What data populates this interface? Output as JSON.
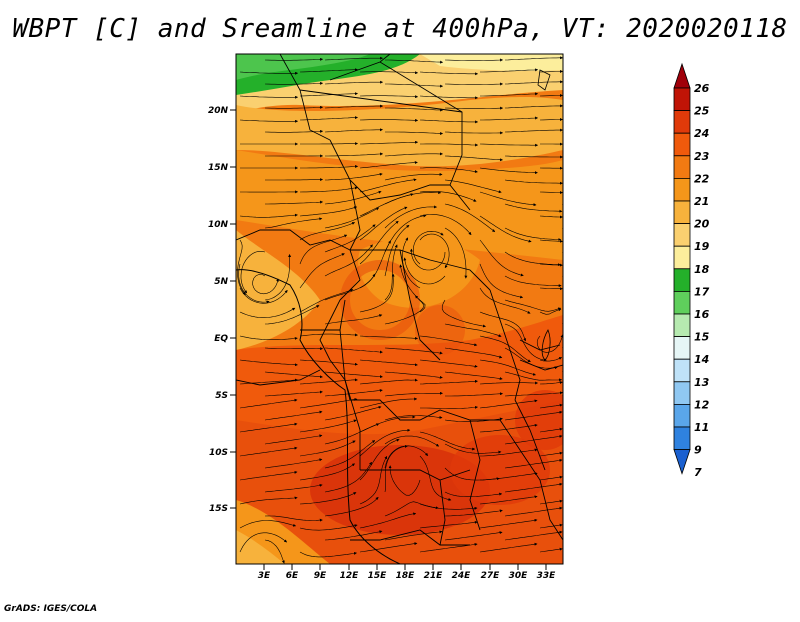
{
  "title": "WBPT [C] and Sreamline at 400hPa, VT: 2020020118",
  "credit": "GrADS: IGES/COLA",
  "lat_labels": [
    "20N",
    "15N",
    "10N",
    "5N",
    "EQ",
    "5S",
    "10S",
    "15S"
  ],
  "lon_labels": [
    "3E",
    "6E",
    "9E",
    "12E",
    "15E",
    "18E",
    "21E",
    "24E",
    "27E",
    "30E",
    "33E"
  ],
  "colorbar": {
    "labels": [
      "26",
      "25",
      "24",
      "23",
      "22",
      "21",
      "20",
      "19",
      "18",
      "17",
      "16",
      "15",
      "14",
      "13",
      "12",
      "11",
      "9",
      "7"
    ],
    "colors": [
      "#a0000a",
      "#c01406",
      "#e03a0a",
      "#f05a0c",
      "#f27a12",
      "#f5961a",
      "#f7b23c",
      "#fad070",
      "#fcee9c",
      "#24b02a",
      "#5fcf5c",
      "#b6eab0",
      "#e6f6f6",
      "#bfe2f8",
      "#90c8f2",
      "#5aa6ea",
      "#2f82df",
      "#1a60d0"
    ]
  }
}
